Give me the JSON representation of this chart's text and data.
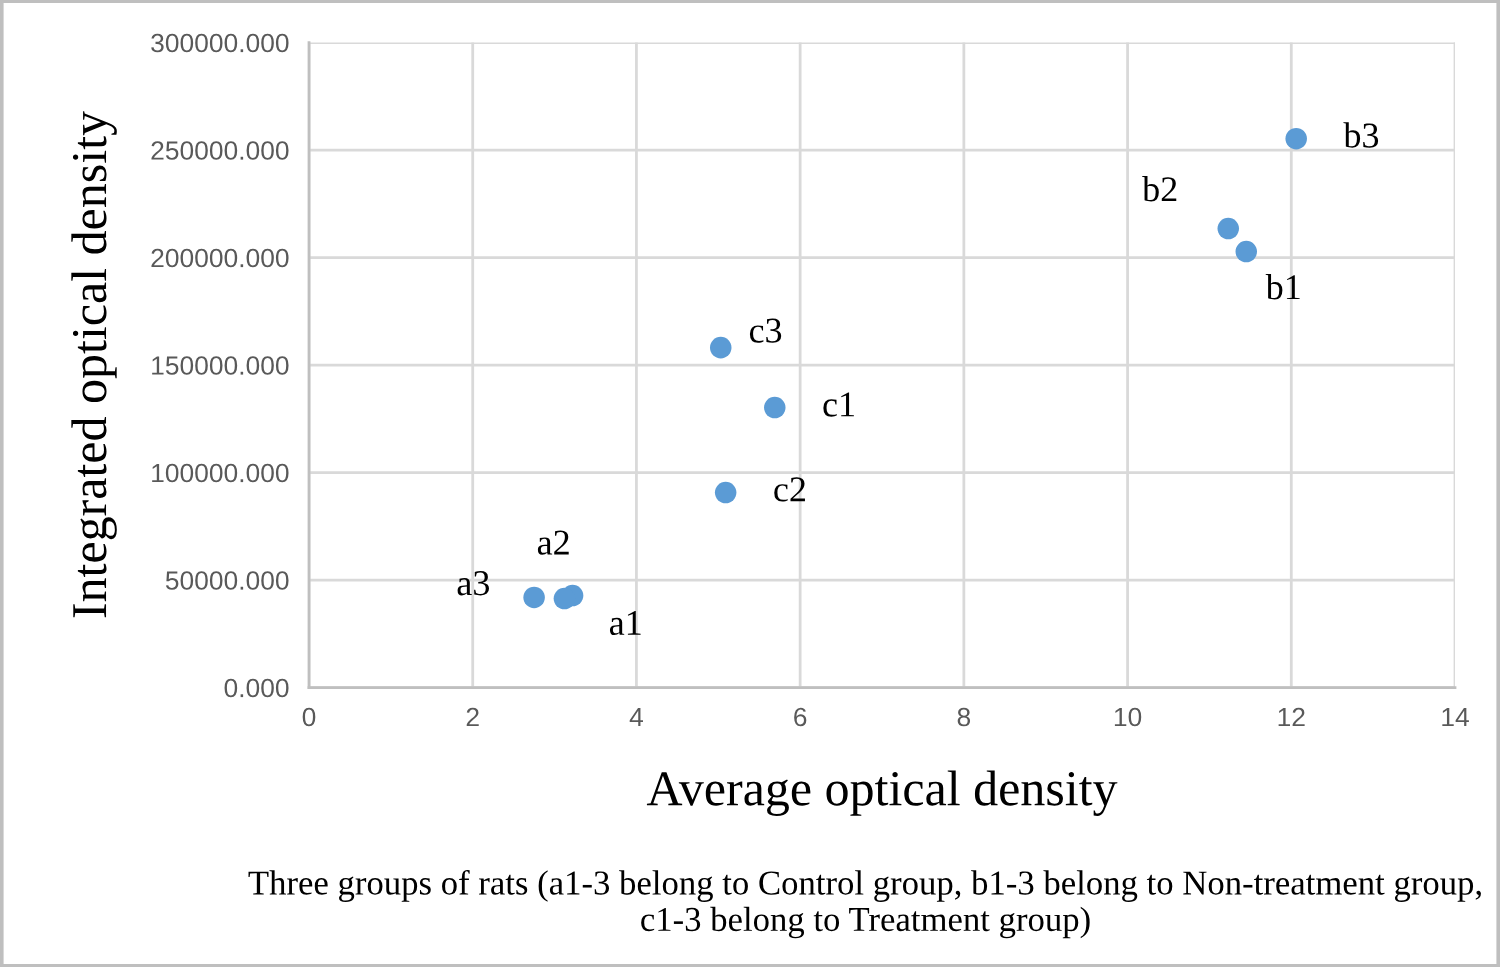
{
  "chart_data": {
    "type": "scatter",
    "xlabel": "Average optical density",
    "ylabel": "Integrated optical density",
    "x": [
      3.22,
      3.12,
      2.75,
      11.45,
      11.23,
      12.06,
      5.69,
      5.09,
      5.03
    ],
    "series": [
      {
        "color": "#5b9bd5",
        "values": [
          42800,
          41400,
          41900,
          202800,
          213500,
          255300,
          130200,
          90700,
          158100
        ]
      }
    ],
    "xlim": [
      0,
      14
    ],
    "xticks": [
      0,
      2,
      4,
      6,
      8,
      10,
      12,
      14
    ],
    "ylim": [
      0,
      300000
    ],
    "yticks": [
      {
        "value": 0,
        "label": "0.000"
      },
      {
        "value": 50000,
        "label": "50000.000"
      },
      {
        "value": 100000,
        "label": "100000.000"
      },
      {
        "value": 150000,
        "label": "150000.000"
      },
      {
        "value": 200000,
        "label": "200000.000"
      },
      {
        "value": 250000,
        "label": "250000.000"
      },
      {
        "value": 300000,
        "label": "300000.000"
      }
    ],
    "grid": true,
    "marker": "circle",
    "annotations": [
      {
        "text": "a1",
        "x": 3.22,
        "y": 42800
      },
      {
        "text": "a2",
        "x": 3.12,
        "y": 41400
      },
      {
        "text": "a3",
        "x": 2.75,
        "y": 41900
      },
      {
        "text": "b1",
        "x": 11.45,
        "y": 202800
      },
      {
        "text": "b2",
        "x": 11.23,
        "y": 213500
      },
      {
        "text": "b3",
        "x": 12.06,
        "y": 255300
      },
      {
        "text": "c1",
        "x": 5.69,
        "y": 130200
      },
      {
        "text": "c2",
        "x": 5.09,
        "y": 90700
      },
      {
        "text": "c3",
        "x": 5.03,
        "y": 158100
      },
      "Three groups of rats (a1-3 belong to Control group, b1-3 belong to Non-treatment group, c1-3 belong to Treatment group)"
    ]
  }
}
